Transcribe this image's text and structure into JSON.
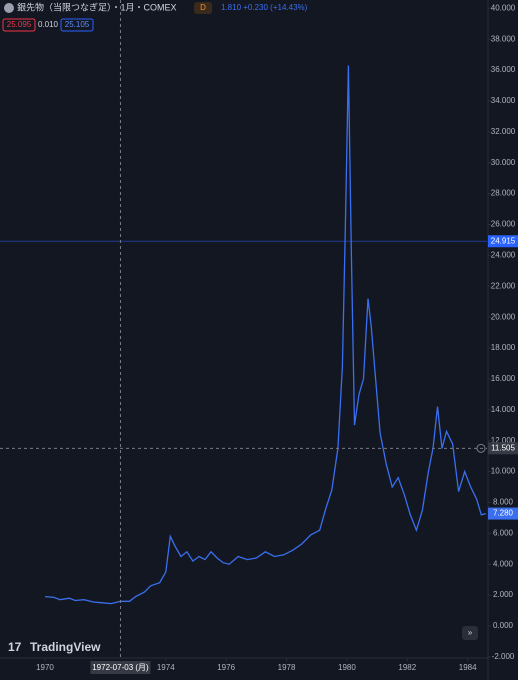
{
  "header": {
    "symbol": "銀先物（当限つなぎ足）・1月・COMEX",
    "badge": "D",
    "change": "1.810 +0.230 (+14.43%)",
    "bid": "25.095",
    "spread": "0.010",
    "ask": "25.105"
  },
  "branding": "TradingView",
  "chart_data": {
    "type": "line",
    "series": [
      {
        "name": "銀先物",
        "color": "#3a6ff0",
        "x": [
          1970.0,
          1970.3,
          1970.5,
          1970.8,
          1971.0,
          1971.3,
          1971.6,
          1971.9,
          1972.2,
          1972.5,
          1972.8,
          1973.0,
          1973.3,
          1973.5,
          1973.8,
          1974.0,
          1974.15,
          1974.3,
          1974.5,
          1974.7,
          1974.9,
          1975.1,
          1975.3,
          1975.5,
          1975.7,
          1975.9,
          1976.1,
          1976.4,
          1976.7,
          1977.0,
          1977.3,
          1977.6,
          1977.9,
          1978.2,
          1978.5,
          1978.8,
          1979.1,
          1979.3,
          1979.5,
          1979.7,
          1979.85,
          1979.95,
          1980.05,
          1980.15,
          1980.25,
          1980.4,
          1980.55,
          1980.7,
          1980.8,
          1980.95,
          1981.1,
          1981.3,
          1981.5,
          1981.7,
          1981.9,
          1982.1,
          1982.3,
          1982.5,
          1982.7,
          1982.85,
          1983.0,
          1983.15,
          1983.3,
          1983.5,
          1983.7,
          1983.9,
          1984.1,
          1984.3,
          1984.45,
          1984.6
        ],
        "values": [
          1.9,
          1.85,
          1.7,
          1.8,
          1.65,
          1.7,
          1.55,
          1.5,
          1.45,
          1.6,
          1.6,
          1.9,
          2.2,
          2.6,
          2.8,
          3.5,
          5.8,
          5.2,
          4.5,
          4.8,
          4.2,
          4.5,
          4.3,
          4.8,
          4.4,
          4.1,
          4.0,
          4.5,
          4.3,
          4.4,
          4.8,
          4.5,
          4.6,
          4.9,
          5.3,
          5.9,
          6.2,
          7.6,
          8.8,
          11.5,
          16.8,
          26,
          36.3,
          24,
          13,
          15,
          16,
          21.2,
          19.5,
          16,
          12.5,
          10.5,
          9,
          9.6,
          8.5,
          7.2,
          6.2,
          7.5,
          10,
          11.5,
          14.2,
          11.5,
          12.6,
          11.8,
          8.7,
          10,
          9,
          8.2,
          7.2,
          7.28
        ]
      }
    ],
    "xlim": [
      1968.51,
      1984.64
    ],
    "xticks": [
      1970,
      1974,
      1976,
      1978,
      1980,
      1982,
      1984
    ],
    "ylim": [
      -3.5,
      40.54
    ],
    "yticks": [
      {
        "value": -2,
        "label": "-2.000"
      },
      {
        "value": 0,
        "label": "0.000"
      },
      {
        "value": 2,
        "label": "2.000"
      },
      {
        "value": 4,
        "label": "4.000"
      },
      {
        "value": 6,
        "label": "6.000"
      },
      {
        "value": 8,
        "label": "8.000"
      },
      {
        "value": 10,
        "label": "10.000"
      },
      {
        "value": 12,
        "label": "12.000"
      },
      {
        "value": 14,
        "label": "14.000"
      },
      {
        "value": 16,
        "label": "16.000"
      },
      {
        "value": 18,
        "label": "18.000"
      },
      {
        "value": 20,
        "label": "20.000"
      },
      {
        "value": 22,
        "label": "22.000"
      },
      {
        "value": 24,
        "label": "24.000"
      },
      {
        "value": 26,
        "label": "26.000"
      },
      {
        "value": 28,
        "label": "28.000"
      },
      {
        "value": 30,
        "label": "30.000"
      },
      {
        "value": 32,
        "label": "32.000"
      },
      {
        "value": 34,
        "label": "34.000"
      },
      {
        "value": 36,
        "label": "36.000"
      },
      {
        "value": 38,
        "label": "38.000"
      },
      {
        "value": 40,
        "label": "40.000"
      }
    ],
    "grid": false,
    "price_line": {
      "value": 24.915,
      "label": "24.915"
    },
    "crosshair": {
      "x": 1972.5,
      "x_label": "1972-07-03 (月)",
      "y": 11.505,
      "y_label": "11.505"
    },
    "last_price": {
      "value": 7.28,
      "label": "7.280"
    }
  }
}
